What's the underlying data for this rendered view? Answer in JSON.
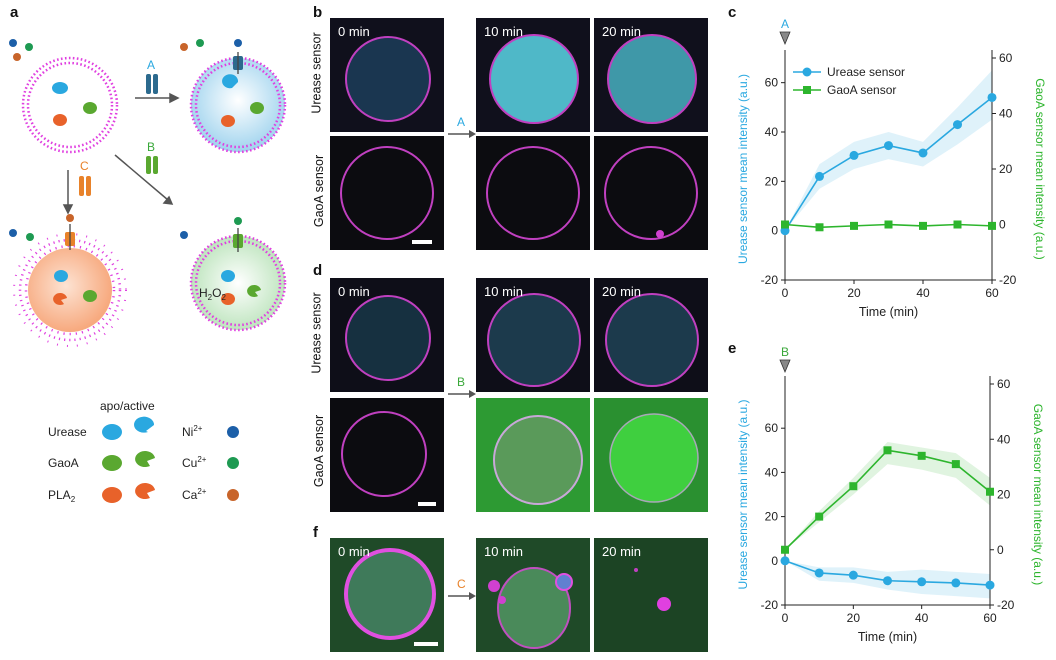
{
  "panels": {
    "a": "a",
    "b": "b",
    "c": "c",
    "d": "d",
    "e": "e",
    "f": "f"
  },
  "schematic": {
    "arrow_labels": {
      "A": "A",
      "B": "B",
      "C": "C"
    },
    "h2o2": {
      "base": "H",
      "sub1": "2",
      "mid": "O",
      "sub2": "2"
    },
    "legend": {
      "header": "apo/active",
      "enzymes": [
        {
          "label": "Urease",
          "color": "#2aa8e0"
        },
        {
          "label": "GaoA",
          "color": "#5aa830"
        },
        {
          "label": "PLA",
          "sub": "2",
          "color": "#e8622a"
        }
      ],
      "ions": [
        {
          "label": "Ni",
          "sup": "2+",
          "color": "#1c5fa8"
        },
        {
          "label": "Cu",
          "sup": "2+",
          "color": "#1e9a52"
        },
        {
          "label": "Ca",
          "sup": "2+",
          "color": "#c8642a"
        }
      ]
    }
  },
  "microscopy": {
    "times": [
      "0 min",
      "10 min",
      "20 min"
    ],
    "rows": {
      "urease": "Urease sensor",
      "gaoa": "GaoA sensor"
    },
    "arrows": {
      "b": "A",
      "d": "B",
      "f": "C"
    }
  },
  "colors": {
    "urease": "#2aa8e0",
    "gaoa": "#2db52d",
    "membrane": "#e040e0",
    "label_A": "#2aa8e0",
    "label_B": "#3aa83a",
    "label_C": "#e8822a"
  },
  "chart_data": [
    {
      "id": "c",
      "type": "line",
      "marker_label": "A",
      "xlabel": "Time (min)",
      "ylabel_left": "Urease sensor mean intensity (a.u.)",
      "ylabel_right": "GaoA sensor mean intensity (a.u.)",
      "x": [
        0,
        10,
        20,
        30,
        40,
        50,
        60
      ],
      "xlim": [
        0,
        60
      ],
      "xticks": [
        0,
        20,
        40,
        60
      ],
      "ylim_left": [
        -20,
        70
      ],
      "yticks_left": [
        -20,
        0,
        20,
        40,
        60
      ],
      "ylim_right": [
        -20,
        60
      ],
      "yticks_right": [
        -20,
        0,
        20,
        40,
        60
      ],
      "legend_placement": "top-left",
      "series": [
        {
          "name": "Urease sensor",
          "axis": "left",
          "marker": "circle",
          "color": "#2aa8e0",
          "values": [
            0,
            22,
            30.5,
            34.5,
            31.5,
            43,
            54
          ],
          "band": [
            [
              0,
              0
            ],
            [
              17,
              27
            ],
            [
              25,
              36
            ],
            [
              29,
              40
            ],
            [
              26,
              36
            ],
            [
              35,
              50
            ],
            [
              45,
              65
            ]
          ]
        },
        {
          "name": "GaoA sensor",
          "axis": "right",
          "marker": "square",
          "color": "#2db52d",
          "values": [
            0,
            -1,
            -0.5,
            0,
            -0.5,
            0,
            -0.5
          ]
        }
      ]
    },
    {
      "id": "e",
      "type": "line",
      "marker_label": "B",
      "xlabel": "Time (min)",
      "ylabel_left": "Urease sensor mean intensity (a.u.)",
      "ylabel_right": "GaoA sensor mean intensity (a.u.)",
      "x": [
        0,
        10,
        20,
        30,
        40,
        50,
        60
      ],
      "xlim": [
        0,
        60
      ],
      "xticks": [
        0,
        20,
        40,
        60
      ],
      "ylim_left": [
        -20,
        80
      ],
      "yticks_left": [
        -20,
        0,
        20,
        40,
        60
      ],
      "ylim_right": [
        -20,
        60
      ],
      "yticks_right": [
        -20,
        0,
        20,
        40,
        60
      ],
      "series": [
        {
          "name": "Urease sensor",
          "axis": "left",
          "marker": "circle",
          "color": "#2aa8e0",
          "values": [
            0,
            -5.5,
            -6.5,
            -9,
            -9.5,
            -10,
            -11
          ],
          "band": [
            [
              0,
              0
            ],
            [
              -9,
              -3
            ],
            [
              -10,
              -3
            ],
            [
              -13,
              -5
            ],
            [
              -15,
              -4
            ],
            [
              -16,
              -5
            ],
            [
              -17,
              -6
            ]
          ]
        },
        {
          "name": "GaoA sensor",
          "axis": "right",
          "marker": "square",
          "color": "#2db52d",
          "values": [
            0,
            12,
            23,
            36,
            34,
            31,
            21
          ],
          "band": [
            [
              0,
              0
            ],
            [
              10,
              14
            ],
            [
              20,
              26
            ],
            [
              31,
              39
            ],
            [
              29,
              37
            ],
            [
              26,
              35
            ],
            [
              16,
              26
            ]
          ]
        }
      ]
    }
  ]
}
